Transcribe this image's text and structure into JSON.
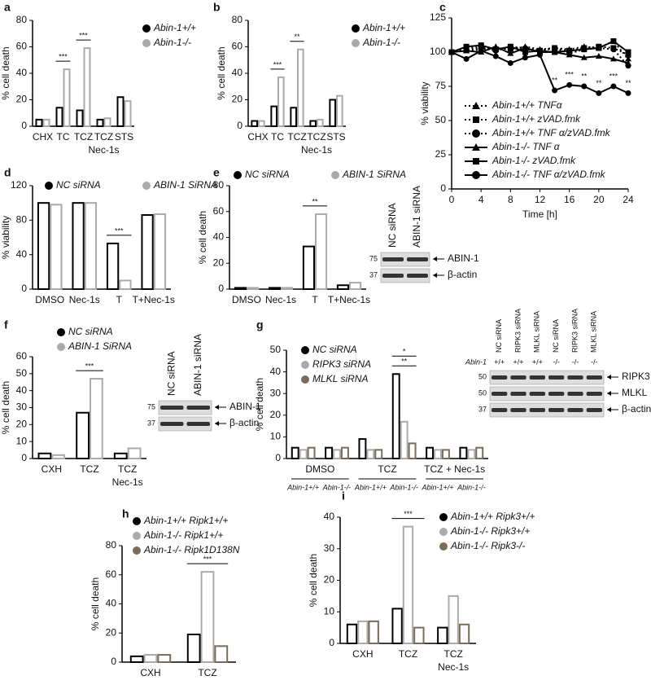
{
  "chart_data": [
    {
      "type": "bar",
      "panel": "a",
      "ylabel": "% cell death",
      "categories": [
        "CHX",
        "TC",
        "TCZ",
        "TCZ",
        "STS"
      ],
      "category_notes": [
        null,
        null,
        null,
        "Nec-1s",
        null
      ],
      "ylim": [
        0,
        80
      ],
      "yticks": [
        0,
        20,
        40,
        60,
        80
      ],
      "series": [
        {
          "name": "Abin-1+/+",
          "color": "#000000",
          "values": [
            5,
            14,
            12,
            5,
            22
          ]
        },
        {
          "name": "Abin-1-/-",
          "color": "#aaaaaa",
          "values": [
            5,
            43,
            59,
            6,
            19
          ]
        }
      ],
      "significance": [
        {
          "label": "***",
          "category": 1
        },
        {
          "label": "***",
          "category": 2
        }
      ]
    },
    {
      "type": "bar",
      "panel": "b",
      "ylabel": "% cell death",
      "categories": [
        "CHX",
        "TC",
        "TCZ",
        "TCZ",
        "STS"
      ],
      "category_notes": [
        null,
        null,
        null,
        "Nec-1s",
        null
      ],
      "ylim": [
        0,
        80
      ],
      "yticks": [
        0,
        20,
        40,
        60,
        80
      ],
      "series": [
        {
          "name": "Abin-1+/+",
          "color": "#000000",
          "values": [
            4,
            15,
            14,
            4,
            20
          ]
        },
        {
          "name": "Abin-1-/-",
          "color": "#aaaaaa",
          "values": [
            4,
            37,
            58,
            5,
            23
          ]
        }
      ],
      "significance": [
        {
          "label": "***",
          "category": 1
        },
        {
          "label": "**",
          "category": 2
        }
      ]
    },
    {
      "type": "line",
      "panel": "c",
      "ylabel": "% viability",
      "xlabel": "Time [h]",
      "x": [
        0,
        2,
        4,
        6,
        8,
        10,
        12,
        14,
        16,
        18,
        20,
        22,
        24
      ],
      "xlim": [
        0,
        24
      ],
      "xticks": [
        0,
        4,
        8,
        12,
        16,
        20,
        24
      ],
      "ylim": [
        0,
        125
      ],
      "yticks": [
        0,
        25,
        50,
        75,
        100,
        125
      ],
      "series": [
        {
          "name": "Abin-1+/+ TNFα",
          "color": "#000000",
          "marker": "triangle",
          "dashed": true,
          "values": [
            100,
            101,
            102,
            103,
            102,
            104,
            102,
            103,
            102,
            104,
            103,
            108,
            95
          ]
        },
        {
          "name": "Abin-1+/+ zVAD.fmk",
          "color": "#000000",
          "marker": "square",
          "dashed": true,
          "values": [
            100,
            103,
            104,
            102,
            103,
            102,
            101,
            103,
            101,
            103,
            104,
            103,
            98
          ]
        },
        {
          "name": "Abin-1+/+ TNF α/zVAD.fmk",
          "color": "#000000",
          "marker": "circle",
          "dashed": true,
          "values": [
            100,
            102,
            103,
            101,
            104,
            103,
            101,
            103,
            99,
            102,
            103,
            102,
            90
          ]
        },
        {
          "name": "Abin-1-/- TNF α",
          "color": "#000000",
          "marker": "triangle",
          "dashed": false,
          "values": [
            100,
            101,
            100,
            104,
            99,
            103,
            100,
            100,
            98,
            96,
            97,
            95,
            92
          ]
        },
        {
          "name": "Abin-1-/- zVAD.fmk",
          "color": "#000000",
          "marker": "square",
          "dashed": false,
          "values": [
            100,
            104,
            105,
            102,
            104,
            100,
            101,
            100,
            101,
            102,
            103,
            108,
            100
          ]
        },
        {
          "name": "Abin-1-/- TNF α/zVAD.fmk",
          "color": "#000000",
          "marker": "circle",
          "dashed": false,
          "values": [
            100,
            95,
            101,
            97,
            92,
            96,
            98,
            72,
            76,
            75,
            70,
            75,
            70
          ]
        }
      ],
      "significance": [
        {
          "label": "**",
          "x": 14
        },
        {
          "label": "***",
          "x": 16
        },
        {
          "label": "**",
          "x": 18
        },
        {
          "label": "**",
          "x": 20
        },
        {
          "label": "***",
          "x": 22
        },
        {
          "label": "**",
          "x": 24
        }
      ]
    },
    {
      "type": "bar",
      "panel": "d",
      "ylabel": "% viability",
      "categories": [
        "DMSO",
        "Nec-1s",
        "T",
        "T+Nec-1s"
      ],
      "ylim": [
        0,
        120
      ],
      "yticks": [
        0,
        40,
        80,
        120
      ],
      "series": [
        {
          "name": "NC siRNA",
          "color": "#000000",
          "values": [
            100,
            100,
            53,
            86
          ]
        },
        {
          "name": "ABIN-1 SiRNA",
          "color": "#aaaaaa",
          "values": [
            98,
            100,
            10,
            87
          ]
        }
      ],
      "significance": [
        {
          "label": "***",
          "category": 2
        }
      ]
    },
    {
      "type": "bar",
      "panel": "e",
      "ylabel": "% cell death",
      "categories": [
        "DMSO",
        "Nec-1s",
        "T",
        "T+Nec-1s"
      ],
      "ylim": [
        0,
        80
      ],
      "yticks": [
        0,
        20,
        40,
        60,
        80
      ],
      "series": [
        {
          "name": "NC siRNA",
          "color": "#000000",
          "values": [
            1,
            1,
            33,
            3
          ]
        },
        {
          "name": "ABIN-1 SiRNA",
          "color": "#aaaaaa",
          "values": [
            1,
            1,
            58,
            5
          ]
        }
      ],
      "significance": [
        {
          "label": "**",
          "category": 2
        }
      ],
      "blot": {
        "lanes": [
          "NC siRNA",
          "ABIN-1 siRNA"
        ],
        "markers": [
          "75",
          "37"
        ],
        "bands": [
          "ABIN-1",
          "β-actin"
        ]
      }
    },
    {
      "type": "bar",
      "panel": "f",
      "ylabel": "% cell death",
      "categories": [
        "CXH",
        "TCZ",
        "TCZ"
      ],
      "category_notes": [
        null,
        null,
        "Nec-1s"
      ],
      "ylim": [
        0,
        60
      ],
      "yticks": [
        0,
        10,
        20,
        30,
        40,
        50,
        60
      ],
      "series": [
        {
          "name": "NC siRNA",
          "color": "#000000",
          "values": [
            3,
            27,
            3
          ]
        },
        {
          "name": "ABIN-1 SiRNA",
          "color": "#aaaaaa",
          "values": [
            2,
            47,
            6
          ]
        }
      ],
      "significance": [
        {
          "label": "***",
          "category": 1
        }
      ],
      "blot": {
        "lanes": [
          "NC siRNA",
          "ABIN-1 siRNA"
        ],
        "markers": [
          "75",
          "37"
        ],
        "bands": [
          "ABIN-1",
          "β-actin"
        ]
      }
    },
    {
      "type": "bar",
      "panel": "g",
      "ylabel": "% cell death",
      "categories": [
        "Abin-1+/+",
        "Abin-1-/-",
        "Abin-1+/+",
        "Abin-1-/-",
        "Abin-1+/+",
        "Abin-1-/-"
      ],
      "groups": [
        "DMSO",
        "TCZ",
        "TCZ + Nec-1s"
      ],
      "ylim": [
        0,
        50
      ],
      "yticks": [
        0,
        10,
        20,
        30,
        40,
        50
      ],
      "series": [
        {
          "name": "NC siRNA",
          "color": "#000000",
          "values": [
            5,
            5,
            9,
            39,
            5,
            5
          ]
        },
        {
          "name": "RIPK3 siRNA",
          "color": "#aaaaaa",
          "values": [
            4,
            4,
            4,
            17,
            4,
            4
          ]
        },
        {
          "name": "MLKL siRNA",
          "color": "#7a6c58",
          "values": [
            5,
            5,
            4,
            7,
            4,
            5
          ]
        }
      ],
      "significance": [
        {
          "label": "**",
          "category": 3
        },
        {
          "label": "*",
          "category": 3
        }
      ],
      "blot": {
        "lanes": [
          "NC siRNA",
          "RIPK3 siRNA",
          "MLKL siRNA",
          "NC siRNA",
          "RIPK3 siRNA",
          "MLKL siRNA"
        ],
        "genotype": {
          "label": "Abin-1",
          "values": [
            "+/+",
            "+/+",
            "+/+",
            "-/-",
            "-/-",
            "-/-"
          ]
        },
        "markers": [
          "50",
          "50",
          "37"
        ],
        "bands": [
          "RIPK3",
          "MLKL",
          "β-actin"
        ]
      }
    },
    {
      "type": "bar",
      "panel": "h",
      "ylabel": "% cell death",
      "categories": [
        "CXH",
        "TCZ"
      ],
      "ylim": [
        0,
        80
      ],
      "yticks": [
        0,
        20,
        40,
        60,
        80
      ],
      "series": [
        {
          "name": "Abin-1+/+ Ripk1+/+",
          "color": "#000000",
          "values": [
            4,
            19
          ]
        },
        {
          "name": "Abin-1-/- Ripk1+/+",
          "color": "#aaaaaa",
          "values": [
            5,
            62
          ]
        },
        {
          "name": "Abin-1-/- Ripk1D138N",
          "color": "#7a6c58",
          "values": [
            5,
            11
          ]
        }
      ],
      "significance": [
        {
          "label": "***",
          "category": 1
        }
      ]
    },
    {
      "type": "bar",
      "panel": "i",
      "ylabel": "% cell death",
      "categories": [
        "CXH",
        "TCZ",
        "TCZ"
      ],
      "category_notes": [
        null,
        null,
        "Nec-1s"
      ],
      "ylim": [
        0,
        40
      ],
      "yticks": [
        0,
        10,
        20,
        30,
        40
      ],
      "series": [
        {
          "name": "Abin-1+/+ Ripk3+/+",
          "color": "#000000",
          "values": [
            6,
            11,
            5
          ]
        },
        {
          "name": "Abin-1-/- Ripk3+/+",
          "color": "#aaaaaa",
          "values": [
            7,
            37,
            15
          ]
        },
        {
          "name": "Abin-1-/- Ripk3-/-",
          "color": "#7a6c58",
          "values": [
            7,
            5,
            6
          ]
        }
      ],
      "significance": [
        {
          "label": "***",
          "category": 1
        }
      ]
    }
  ]
}
